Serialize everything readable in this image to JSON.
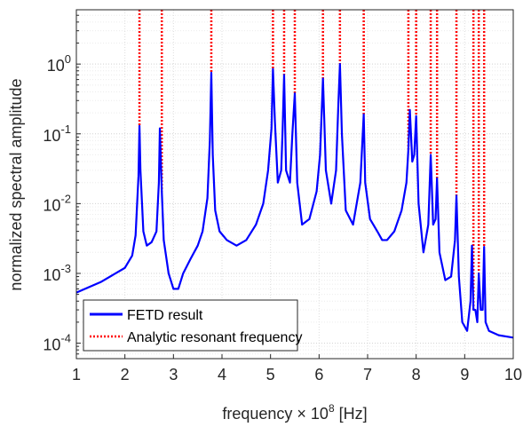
{
  "chart_data": {
    "type": "line",
    "title": "",
    "xlabel": {
      "pre": "frequency × 10",
      "exp": "8",
      "post": " [Hz]"
    },
    "ylabel": "normalized spectral amplitude",
    "xlim": [
      1,
      10
    ],
    "ylim": [
      6e-05,
      6
    ],
    "yscale": "log",
    "grid": true,
    "legend_position": "bottom-left",
    "x_ticks": [
      "1",
      "2",
      "3",
      "4",
      "5",
      "6",
      "7",
      "8",
      "9",
      "10"
    ],
    "y_ticks": [
      {
        "base": "10",
        "exp": "-4",
        "value": 0.0001
      },
      {
        "base": "10",
        "exp": "-3",
        "value": 0.001
      },
      {
        "base": "10",
        "exp": "-2",
        "value": 0.01
      },
      {
        "base": "10",
        "exp": "-1",
        "value": 0.1
      },
      {
        "base": "10",
        "exp": "0",
        "value": 1
      }
    ],
    "series": [
      {
        "name": "FETD result",
        "color": "#0000ff",
        "style": "solid",
        "x": [
          1.0,
          1.5,
          2.0,
          2.15,
          2.22,
          2.28,
          2.3,
          2.32,
          2.38,
          2.45,
          2.55,
          2.65,
          2.7,
          2.72,
          2.76,
          2.8,
          2.9,
          3.0,
          3.1,
          3.2,
          3.35,
          3.5,
          3.6,
          3.7,
          3.75,
          3.78,
          3.81,
          3.86,
          3.95,
          4.1,
          4.3,
          4.5,
          4.7,
          4.85,
          4.95,
          5.02,
          5.05,
          5.09,
          5.15,
          5.22,
          5.25,
          5.28,
          5.32,
          5.4,
          5.45,
          5.5,
          5.55,
          5.65,
          5.8,
          5.95,
          6.02,
          6.08,
          6.14,
          6.25,
          6.35,
          6.4,
          6.43,
          6.47,
          6.55,
          6.7,
          6.85,
          6.9,
          6.92,
          6.95,
          7.05,
          7.2,
          7.3,
          7.4,
          7.55,
          7.7,
          7.8,
          7.84,
          7.87,
          7.92,
          7.96,
          8.0,
          8.05,
          8.15,
          8.25,
          8.3,
          8.35,
          8.4,
          8.43,
          8.48,
          8.6,
          8.72,
          8.8,
          8.83,
          8.88,
          8.95,
          9.05,
          9.12,
          9.15,
          9.18,
          9.22,
          9.26,
          9.29,
          9.33,
          9.37,
          9.4,
          9.43,
          9.5,
          9.7,
          10.0
        ],
        "y": [
          0.00053,
          0.00075,
          0.0012,
          0.0018,
          0.0035,
          0.025,
          0.13,
          0.03,
          0.004,
          0.0025,
          0.0028,
          0.004,
          0.02,
          0.12,
          0.015,
          0.003,
          0.001,
          0.0006,
          0.0006,
          0.001,
          0.0016,
          0.0025,
          0.004,
          0.012,
          0.08,
          0.75,
          0.05,
          0.008,
          0.004,
          0.003,
          0.0025,
          0.003,
          0.005,
          0.01,
          0.03,
          0.12,
          0.85,
          0.15,
          0.02,
          0.03,
          0.12,
          0.7,
          0.03,
          0.02,
          0.1,
          0.38,
          0.02,
          0.005,
          0.006,
          0.015,
          0.05,
          0.62,
          0.03,
          0.01,
          0.03,
          0.3,
          1.0,
          0.1,
          0.008,
          0.005,
          0.02,
          0.1,
          0.19,
          0.02,
          0.006,
          0.004,
          0.003,
          0.003,
          0.004,
          0.008,
          0.02,
          0.06,
          0.22,
          0.04,
          0.05,
          0.18,
          0.01,
          0.002,
          0.005,
          0.05,
          0.005,
          0.006,
          0.023,
          0.002,
          0.0008,
          0.0009,
          0.003,
          0.013,
          0.0009,
          0.0002,
          0.00015,
          0.0004,
          0.0025,
          0.0003,
          0.0003,
          0.0002,
          0.001,
          0.0003,
          0.0003,
          0.0024,
          0.0002,
          0.00015,
          0.00013,
          0.00012
        ]
      },
      {
        "name": "Analytic resonant frequency",
        "color": "#ff0000",
        "style": "dotted",
        "x": [
          2.3,
          2.76,
          3.78,
          5.05,
          5.28,
          5.5,
          6.08,
          6.43,
          6.92,
          7.84,
          8.0,
          8.3,
          8.43,
          8.83,
          9.18,
          9.29,
          9.4
        ]
      }
    ]
  }
}
